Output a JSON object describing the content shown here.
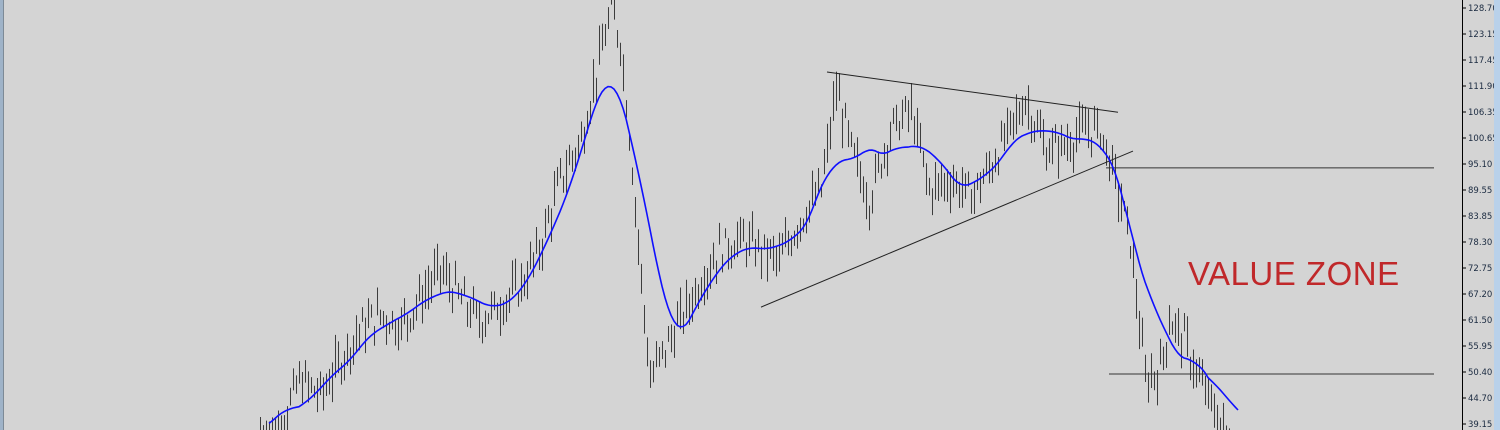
{
  "chart_data": {
    "type": "line",
    "subtype": "ohlc-bars-with-moving-average",
    "title": "",
    "xlabel": "",
    "ylabel": "",
    "ylim": [
      36.0,
      130.4
    ],
    "grid": false,
    "y_axis_position": "right",
    "y_ticks": [
      "128.70",
      "123.15",
      "117.45",
      "111.90",
      "106.35",
      "100.65",
      "95.10",
      "89.55",
      "83.85",
      "78.30",
      "72.75",
      "67.20",
      "61.50",
      "55.95",
      "50.40",
      "44.70",
      "39.15"
    ],
    "series": [
      {
        "kind": "price",
        "bar": [
          0,
          7,
          13,
          20,
          27,
          33,
          40,
          47,
          53,
          60,
          67,
          73,
          80,
          87,
          93,
          100,
          107,
          113,
          117,
          120,
          123,
          127,
          130,
          133,
          140,
          147,
          153,
          160,
          167,
          173,
          180,
          187,
          192,
          197,
          203,
          210,
          217,
          223,
          230,
          237,
          243,
          255,
          262,
          268,
          275,
          280,
          285,
          290,
          295,
          300,
          303,
          308,
          313,
          318,
          323
        ],
        "close": [
          38.0,
          39.5,
          49.1,
          45.9,
          53.4,
          59.8,
          63.0,
          60.9,
          66.2,
          72.7,
          66.2,
          61.9,
          65.2,
          69.4,
          76.9,
          91.9,
          100.5,
          117.6,
          128.3,
          121.9,
          102.6,
          70.5,
          49.1,
          53.4,
          61.9,
          70.5,
          76.9,
          79.1,
          76.9,
          74.8,
          83.4,
          89.8,
          111.2,
          98.3,
          87.6,
          102.6,
          106.9,
          89.8,
          91.9,
          88.7,
          94.1,
          109.0,
          98.3,
          99.4,
          102.6,
          102.6,
          91.9,
          79.1,
          49.1,
          51.3,
          61.9,
          57.7,
          49.1,
          42.7,
          36.3
        ],
        "color": "#3c3c3c"
      },
      {
        "kind": "moving-average",
        "color": "#1010ff"
      }
    ],
    "trendlines": [
      {
        "name": "triangle-upper",
        "from": {
          "bar": 189,
          "price": 115.0
        },
        "to": {
          "bar": 286,
          "price": 106.4
        }
      },
      {
        "name": "triangle-lower",
        "from": {
          "bar": 167,
          "price": 64.7
        },
        "to": {
          "bar": 291,
          "price": 98.1
        }
      }
    ],
    "horizontal_lines": [
      {
        "price": 94.5,
        "from_bar": 282
      },
      {
        "price": 50.4,
        "from_bar": 283
      }
    ],
    "annotations": [
      {
        "text": "VALUE ZONE",
        "color": "#c0282a"
      }
    ]
  }
}
